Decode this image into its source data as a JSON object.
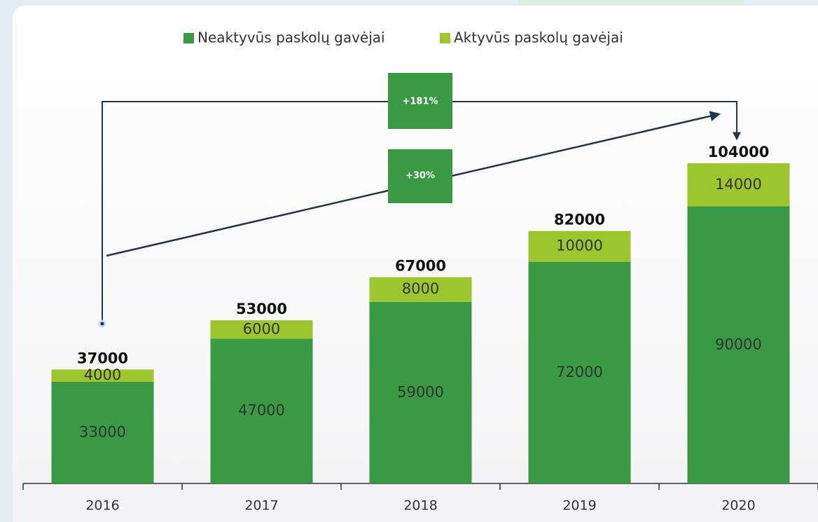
{
  "chart_data": {
    "type": "stacked-bar",
    "categories": [
      "2016",
      "2017",
      "2018",
      "2019",
      "2020"
    ],
    "series": [
      {
        "name": "Neaktyvūs paskolų gavėjai",
        "color": "#3a9a44",
        "values": [
          33000,
          47000,
          59000,
          72000,
          90000
        ]
      },
      {
        "name": "Aktyvūs paskolų gavėjai",
        "color": "#9dc52e",
        "values": [
          4000,
          6000,
          8000,
          10000,
          14000
        ]
      }
    ],
    "totals": [
      37000,
      53000,
      67000,
      82000,
      104000
    ],
    "annotations": [
      "+181%",
      "+30%"
    ]
  }
}
